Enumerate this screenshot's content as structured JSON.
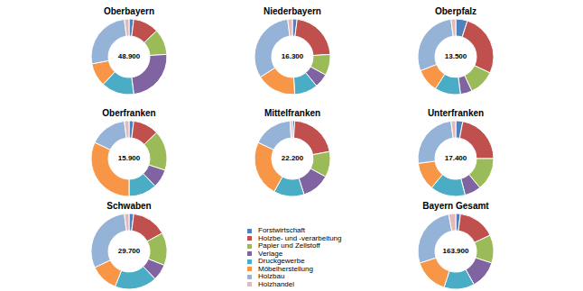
{
  "chart_data": [
    {
      "type": "pie",
      "title": "Oberbayern",
      "total": {
        "value": 48900,
        "label": "48.900"
      },
      "categories": [
        "Forstwirtschaft",
        "Holzbe- und -verarbeitung",
        "Papier und Zellstoff",
        "Verlage",
        "Druckgewerbe",
        "Möbelherstellung",
        "Holzbau",
        "Holzhandel"
      ],
      "values": [
        2,
        11,
        11,
        24,
        14,
        10,
        26,
        2
      ],
      "colors": [
        "#4f81bd",
        "#c0504d",
        "#9bbb59",
        "#8064a2",
        "#4bacc6",
        "#f79646",
        "#95b3d7",
        "#e6b9b8"
      ]
    },
    {
      "type": "pie",
      "title": "Niederbayern",
      "total": {
        "value": 16300,
        "label": "16.300"
      },
      "categories": [
        "Forstwirtschaft",
        "Holzbe- und -verarbeitung",
        "Papier und Zellstoff",
        "Verlage",
        "Druckgewerbe",
        "Möbelherstellung",
        "Holzbau",
        "Holzhandel"
      ],
      "values": [
        2,
        22,
        9,
        6,
        10,
        17,
        32,
        2
      ],
      "colors": [
        "#4f81bd",
        "#c0504d",
        "#9bbb59",
        "#8064a2",
        "#4bacc6",
        "#f79646",
        "#95b3d7",
        "#e6b9b8"
      ]
    },
    {
      "type": "pie",
      "title": "Oberpfalz",
      "total": {
        "value": 13500,
        "label": "13.500"
      },
      "categories": [
        "Forstwirtschaft",
        "Holzbe- und -verarbeitung",
        "Papier und Zellstoff",
        "Verlage",
        "Druckgewerbe",
        "Möbelherstellung",
        "Holzbau",
        "Holzhandel"
      ],
      "values": [
        5,
        27,
        11,
        5,
        11,
        10,
        29,
        2
      ],
      "colors": [
        "#4f81bd",
        "#c0504d",
        "#9bbb59",
        "#8064a2",
        "#4bacc6",
        "#f79646",
        "#95b3d7",
        "#e6b9b8"
      ]
    },
    {
      "type": "pie",
      "title": "Oberfranken",
      "total": {
        "value": 15900,
        "label": "15.900"
      },
      "categories": [
        "Forstwirtschaft",
        "Holzbe- und -verarbeitung",
        "Papier und Zellstoff",
        "Verlage",
        "Druckgewerbe",
        "Möbelherstellung",
        "Holzbau",
        "Holzhandel"
      ],
      "values": [
        2,
        11,
        17,
        8,
        12,
        32,
        16,
        2
      ],
      "colors": [
        "#4f81bd",
        "#c0504d",
        "#9bbb59",
        "#8064a2",
        "#4bacc6",
        "#f79646",
        "#95b3d7",
        "#e6b9b8"
      ]
    },
    {
      "type": "pie",
      "title": "Mittelfranken",
      "total": {
        "value": 22200,
        "label": "22.200"
      },
      "categories": [
        "Forstwirtschaft",
        "Holzbe- und -verarbeitung",
        "Papier und Zellstoff",
        "Verlage",
        "Druckgewerbe",
        "Möbelherstellung",
        "Holzbau",
        "Holzhandel"
      ],
      "values": [
        1,
        21,
        11,
        12,
        13,
        24,
        17,
        1
      ],
      "colors": [
        "#4f81bd",
        "#c0504d",
        "#9bbb59",
        "#8064a2",
        "#4bacc6",
        "#f79646",
        "#95b3d7",
        "#e6b9b8"
      ]
    },
    {
      "type": "pie",
      "title": "Unterfranken",
      "total": {
        "value": 17400,
        "label": "17.400"
      },
      "categories": [
        "Forstwirtschaft",
        "Holzbe- und -verarbeitung",
        "Papier und Zellstoff",
        "Verlage",
        "Druckgewerbe",
        "Möbelherstellung",
        "Holzbau",
        "Holzhandel"
      ],
      "values": [
        3,
        22,
        14,
        7,
        15,
        12,
        25,
        2
      ],
      "colors": [
        "#4f81bd",
        "#c0504d",
        "#9bbb59",
        "#8064a2",
        "#4bacc6",
        "#f79646",
        "#95b3d7",
        "#e6b9b8"
      ]
    },
    {
      "type": "pie",
      "title": "Schwaben",
      "total": {
        "value": 29700,
        "label": "29.700"
      },
      "categories": [
        "Forstwirtschaft",
        "Holzbe- und -verarbeitung",
        "Papier und Zellstoff",
        "Verlage",
        "Druckgewerbe",
        "Möbelherstellung",
        "Holzbau",
        "Holzhandel"
      ],
      "values": [
        2,
        15,
        14,
        7,
        18,
        12,
        30,
        2
      ],
      "colors": [
        "#4f81bd",
        "#c0504d",
        "#9bbb59",
        "#8064a2",
        "#4bacc6",
        "#f79646",
        "#95b3d7",
        "#e6b9b8"
      ]
    },
    {
      "type": "pie",
      "title": "Bayern Gesamt",
      "total": {
        "value": 163900,
        "label": "163.900"
      },
      "categories": [
        "Forstwirtschaft",
        "Holzbe- und -verarbeitung",
        "Papier und Zellstoff",
        "Verlage",
        "Druckgewerbe",
        "Möbelherstellung",
        "Holzbau",
        "Holzhandel"
      ],
      "values": [
        2,
        16,
        12,
        12,
        13,
        15,
        27,
        3
      ],
      "colors": [
        "#4f81bd",
        "#c0504d",
        "#9bbb59",
        "#8064a2",
        "#4bacc6",
        "#f79646",
        "#95b3d7",
        "#e6b9b8"
      ]
    }
  ]
}
